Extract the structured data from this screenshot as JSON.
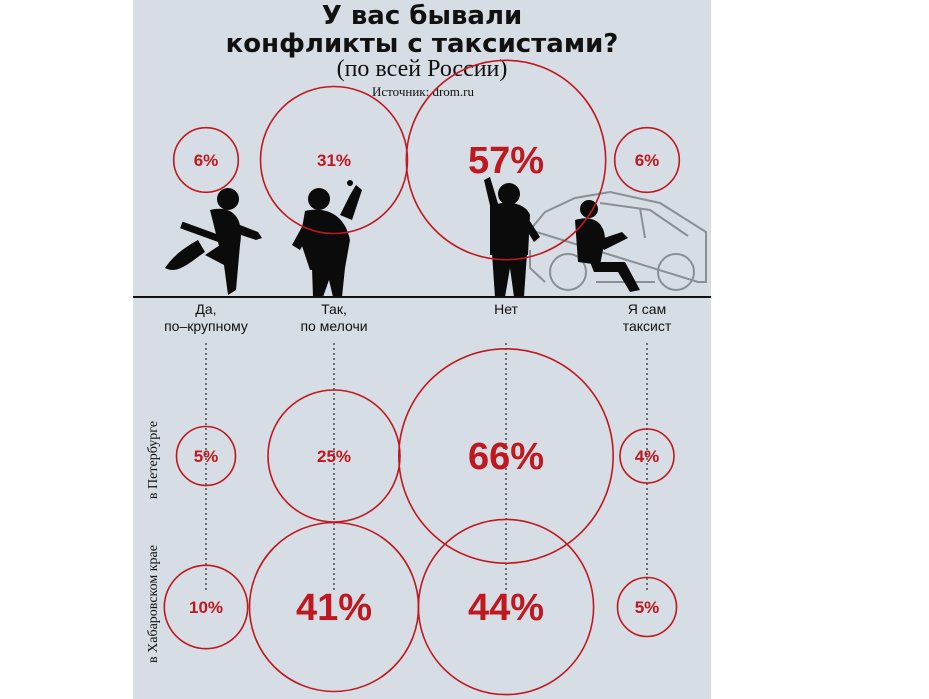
{
  "title_lines": [
    "У вас бывали",
    "конфликты с таксистами?"
  ],
  "subtitle": "(по всей России)",
  "source": "Источник: drom.ru",
  "chart_data": {
    "type": "bubble",
    "categories": [
      "Да, по-крупному",
      "Так, по мелочи",
      "Нет",
      "Я сам таксист"
    ],
    "category_lines": [
      [
        "Да,",
        "по–крупному"
      ],
      [
        "Так,",
        "по мелочи"
      ],
      [
        "Нет"
      ],
      [
        "Я сам",
        "таксист"
      ]
    ],
    "series": [
      {
        "name": "",
        "values": [
          6,
          31,
          57,
          6
        ]
      },
      {
        "name": "в Петербурге",
        "values": [
          5,
          25,
          66,
          4
        ]
      },
      {
        "name": "в Хабаровском крае",
        "values": [
          10,
          41,
          44,
          5
        ]
      }
    ],
    "unit": "%",
    "colors": {
      "accent": "#c0181e",
      "panel": "#d7dde4",
      "figure": "#0b0b0b",
      "car": "#8a8f96"
    }
  }
}
